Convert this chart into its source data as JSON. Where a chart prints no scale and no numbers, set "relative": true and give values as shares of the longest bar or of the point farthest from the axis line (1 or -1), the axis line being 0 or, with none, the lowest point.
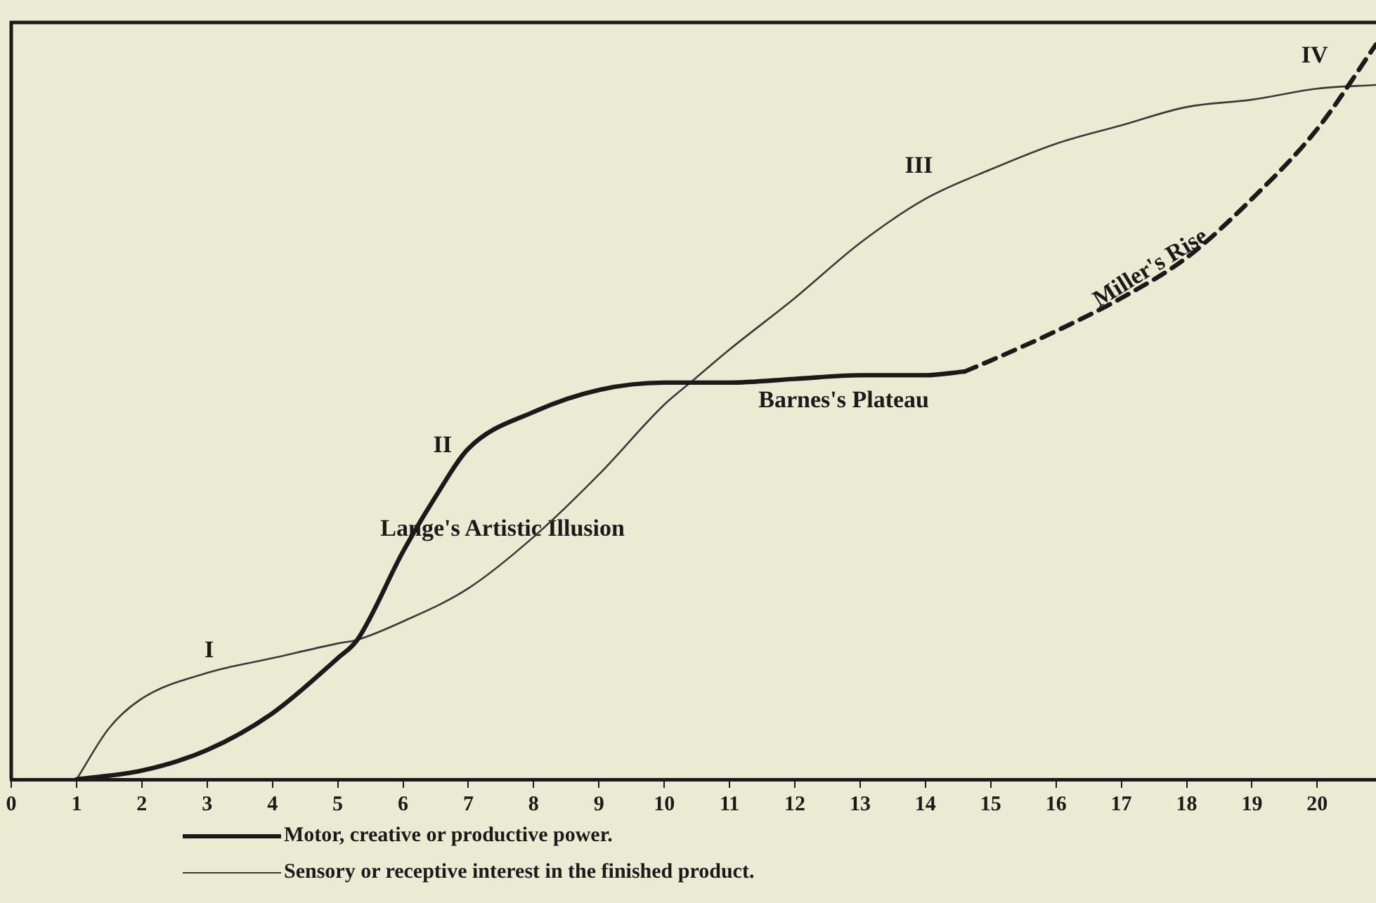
{
  "chart_data": {
    "type": "line",
    "relative": true,
    "xlim": [
      0,
      20.9
    ],
    "xticks": [
      0,
      1,
      2,
      3,
      4,
      5,
      6,
      7,
      8,
      9,
      10,
      11,
      12,
      13,
      14,
      15,
      16,
      17,
      18,
      19,
      20
    ],
    "grid": false,
    "legend": "bottom left",
    "marker": "none",
    "series": [
      {
        "name": "Motor, creative or productive power.",
        "color": "#1a1a1a",
        "line_style": "solid",
        "x": [
          1,
          2,
          3,
          4,
          5,
          5.3,
          6,
          6.5,
          7,
          8,
          9,
          10,
          10.4,
          11,
          12,
          13,
          14,
          14.6
        ],
        "values": [
          0,
          0.012,
          0.04,
          0.09,
          0.165,
          0.19,
          0.31,
          0.385,
          0.45,
          0.5,
          0.53,
          0.54,
          0.54,
          0.54,
          0.545,
          0.55,
          0.55,
          0.555
        ]
      },
      {
        "color": "#1a1a1a",
        "line_style": "dashed",
        "x": [
          14.6,
          15,
          16,
          17,
          18,
          19,
          20,
          20.9
        ],
        "values": [
          0.555,
          0.57,
          0.61,
          0.655,
          0.71,
          0.79,
          0.885,
          1
        ]
      },
      {
        "name": "Sensory or receptive interest in the finished product.",
        "color": "#3a3a3a",
        "line_style": "solid",
        "x": [
          1,
          1.5,
          2,
          3,
          4,
          5,
          5.3,
          6,
          7,
          8,
          9,
          10,
          10.4,
          11,
          12,
          13,
          14,
          15,
          16,
          17,
          18,
          19,
          20,
          20.9
        ],
        "values": [
          0,
          0.07,
          0.11,
          0.145,
          0.165,
          0.185,
          0.19,
          0.215,
          0.26,
          0.33,
          0.415,
          0.51,
          0.54,
          0.585,
          0.655,
          0.73,
          0.79,
          0.83,
          0.865,
          0.89,
          0.915,
          0.925,
          0.94,
          0.945
        ]
      }
    ],
    "annotations": [
      "I",
      "II",
      "III",
      "IV",
      "Lange's Artistic Illusion",
      "Barnes's Plateau",
      "Miller's Rise"
    ]
  }
}
